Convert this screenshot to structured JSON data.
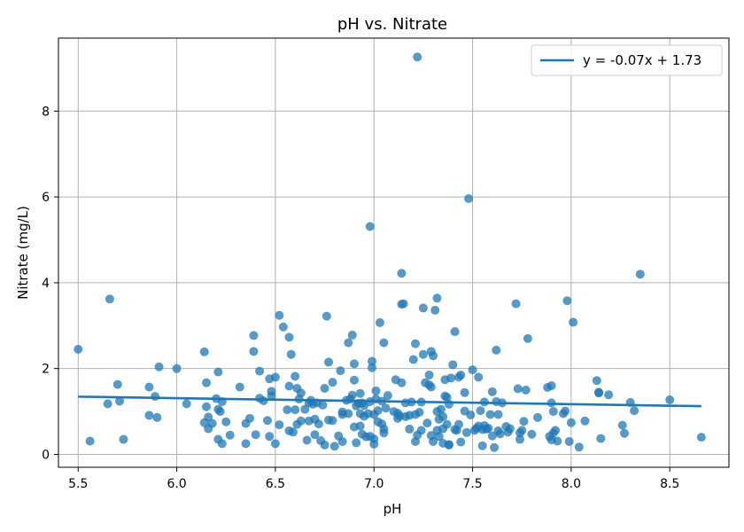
{
  "chart_data": {
    "type": "scatter",
    "title": "pH vs. Nitrate",
    "xlabel": "pH",
    "ylabel": "Nitrate (mg/L)",
    "xlim": [
      5.4,
      8.8
    ],
    "ylim": [
      -0.3,
      9.7
    ],
    "xticks": [
      5.5,
      6.0,
      6.5,
      7.0,
      7.5,
      8.0,
      8.5
    ],
    "xtick_labels": [
      "5.5",
      "6.0",
      "6.5",
      "7.0",
      "7.5",
      "8.0",
      "8.5"
    ],
    "yticks": [
      0,
      2,
      4,
      6,
      8
    ],
    "ytick_labels": [
      "0",
      "2",
      "4",
      "6",
      "8"
    ],
    "grid": true,
    "legend_position": "top-right",
    "point_color": "#1f77b4",
    "line_color": "#1f77b4",
    "trend_line": {
      "label": "y = -0.07x + 1.73",
      "slope": -0.07,
      "intercept": 1.73,
      "x_range": [
        5.5,
        8.66
      ]
    },
    "points": [
      [
        5.5,
        2.45
      ],
      [
        5.56,
        0.31
      ],
      [
        5.65,
        1.18
      ],
      [
        5.66,
        3.62
      ],
      [
        5.7,
        1.63
      ],
      [
        5.71,
        1.24
      ],
      [
        5.73,
        0.35
      ],
      [
        5.86,
        1.57
      ],
      [
        5.86,
        0.91
      ],
      [
        5.89,
        1.35
      ],
      [
        5.9,
        0.86
      ],
      [
        5.91,
        2.04
      ],
      [
        6.0,
        2.0
      ],
      [
        6.05,
        1.18
      ],
      [
        6.14,
        2.39
      ],
      [
        6.14,
        0.74
      ],
      [
        6.15,
        1.67
      ],
      [
        6.15,
        1.11
      ],
      [
        6.16,
        0.87
      ],
      [
        6.16,
        0.6
      ],
      [
        6.18,
        0.72
      ],
      [
        6.2,
        1.3
      ],
      [
        6.21,
        1.05
      ],
      [
        6.21,
        0.35
      ],
      [
        6.21,
        1.92
      ],
      [
        6.22,
        1.0
      ],
      [
        6.23,
        1.23
      ],
      [
        6.23,
        0.25
      ],
      [
        6.25,
        0.76
      ],
      [
        6.27,
        0.45
      ],
      [
        6.32,
        1.57
      ],
      [
        6.35,
        0.25
      ],
      [
        6.35,
        0.72
      ],
      [
        6.37,
        0.84
      ],
      [
        6.39,
        2.77
      ],
      [
        6.39,
        2.4
      ],
      [
        6.4,
        0.46
      ],
      [
        6.42,
        1.94
      ],
      [
        6.42,
        1.31
      ],
      [
        6.44,
        1.25
      ],
      [
        6.46,
        0.79
      ],
      [
        6.47,
        1.76
      ],
      [
        6.47,
        0.42
      ],
      [
        6.48,
        1.47
      ],
      [
        6.48,
        1.36
      ],
      [
        6.5,
        1.8
      ],
      [
        6.5,
        0.25
      ],
      [
        6.52,
        3.24
      ],
      [
        6.52,
        0.69
      ],
      [
        6.54,
        2.97
      ],
      [
        6.56,
        1.04
      ],
      [
        6.57,
        2.73
      ],
      [
        6.57,
        1.59
      ],
      [
        6.57,
        0.55
      ],
      [
        6.58,
        2.33
      ],
      [
        6.59,
        0.52
      ],
      [
        6.6,
        1.82
      ],
      [
        6.6,
        1.04
      ],
      [
        6.61,
        1.54
      ],
      [
        6.61,
        0.7
      ],
      [
        6.62,
        1.29
      ],
      [
        6.63,
        1.43
      ],
      [
        6.63,
        0.78
      ],
      [
        6.65,
        1.05
      ],
      [
        6.66,
        0.33
      ],
      [
        6.67,
        1.2
      ],
      [
        6.67,
        0.78
      ],
      [
        6.68,
        1.26
      ],
      [
        6.69,
        1.17
      ],
      [
        6.7,
        0.82
      ],
      [
        6.7,
        0.46
      ],
      [
        6.71,
        1.2
      ],
      [
        6.72,
        0.71
      ],
      [
        6.73,
        0.32
      ],
      [
        6.74,
        1.15
      ],
      [
        6.75,
        0.22
      ],
      [
        6.75,
        1.54
      ],
      [
        6.76,
        3.22
      ],
      [
        6.77,
        2.15
      ],
      [
        6.77,
        0.8
      ],
      [
        6.79,
        0.79
      ],
      [
        6.79,
        1.68
      ],
      [
        6.8,
        0.19
      ],
      [
        6.82,
        0.43
      ],
      [
        6.83,
        1.95
      ],
      [
        6.84,
        0.99
      ],
      [
        6.84,
        0.93
      ],
      [
        6.84,
        0.3
      ],
      [
        6.86,
        1.26
      ],
      [
        6.87,
        2.6
      ],
      [
        6.87,
        0.95
      ],
      [
        6.88,
        1.29
      ],
      [
        6.89,
        2.78
      ],
      [
        6.89,
        1.38
      ],
      [
        6.9,
        0.64
      ],
      [
        6.9,
        2.11
      ],
      [
        6.9,
        1.73
      ],
      [
        6.91,
        1.13
      ],
      [
        6.91,
        0.27
      ],
      [
        6.92,
        1.19
      ],
      [
        6.93,
        0.95
      ],
      [
        6.93,
        1.42
      ],
      [
        6.93,
        0.66
      ],
      [
        6.94,
        1.2
      ],
      [
        6.94,
        0.47
      ],
      [
        6.95,
        1.14
      ],
      [
        6.95,
        0.89
      ],
      [
        6.96,
        0.41
      ],
      [
        6.97,
        0.95
      ],
      [
        6.98,
        5.31
      ],
      [
        6.98,
        1.23
      ],
      [
        6.98,
        0.42
      ],
      [
        6.99,
        2.17
      ],
      [
        6.99,
        2.02
      ],
      [
        7.0,
        0.93
      ],
      [
        7.0,
        0.36
      ],
      [
        7.0,
        0.24
      ],
      [
        7.01,
        1.48
      ],
      [
        7.01,
        1.29
      ],
      [
        7.02,
        1.02
      ],
      [
        7.02,
        0.76
      ],
      [
        7.03,
        3.07
      ],
      [
        7.04,
        1.24
      ],
      [
        7.04,
        0.71
      ],
      [
        7.05,
        2.6
      ],
      [
        7.05,
        0.59
      ],
      [
        7.05,
        0.5
      ],
      [
        7.06,
        1.08
      ],
      [
        7.07,
        1.37
      ],
      [
        7.1,
        1.0
      ],
      [
        7.11,
        1.74
      ],
      [
        7.12,
        0.96
      ],
      [
        7.12,
        0.84
      ],
      [
        7.13,
        0.9
      ],
      [
        7.14,
        3.5
      ],
      [
        7.14,
        4.22
      ],
      [
        7.14,
        1.67
      ],
      [
        7.15,
        3.51
      ],
      [
        7.16,
        0.88
      ],
      [
        7.16,
        1.2
      ],
      [
        7.18,
        0.59
      ],
      [
        7.18,
        0.91
      ],
      [
        7.19,
        1.22
      ],
      [
        7.2,
        2.21
      ],
      [
        7.21,
        0.93
      ],
      [
        7.21,
        2.58
      ],
      [
        7.21,
        0.3
      ],
      [
        7.22,
        9.26
      ],
      [
        7.22,
        0.45
      ],
      [
        7.23,
        0.98
      ],
      [
        7.24,
        1.22
      ],
      [
        7.24,
        0.56
      ],
      [
        7.25,
        3.41
      ],
      [
        7.25,
        2.33
      ],
      [
        7.26,
        1.67
      ],
      [
        7.27,
        0.73
      ],
      [
        7.28,
        1.62
      ],
      [
        7.28,
        1.85
      ],
      [
        7.29,
        2.4
      ],
      [
        7.29,
        1.57
      ],
      [
        7.29,
        0.44
      ],
      [
        7.3,
        2.3
      ],
      [
        7.3,
        0.3
      ],
      [
        7.31,
        3.36
      ],
      [
        7.32,
        3.64
      ],
      [
        7.32,
        1.0
      ],
      [
        7.32,
        0.56
      ],
      [
        7.33,
        0.82
      ],
      [
        7.33,
        0.42
      ],
      [
        7.34,
        1.05
      ],
      [
        7.35,
        0.88
      ],
      [
        7.35,
        0.6
      ],
      [
        7.35,
        0.26
      ],
      [
        7.36,
        1.74
      ],
      [
        7.36,
        1.36
      ],
      [
        7.37,
        1.33
      ],
      [
        7.37,
        0.7
      ],
      [
        7.38,
        0.22
      ],
      [
        7.38,
        1.17
      ],
      [
        7.38,
        0.23
      ],
      [
        7.39,
        1.78
      ],
      [
        7.4,
        2.09
      ],
      [
        7.41,
        2.86
      ],
      [
        7.41,
        0.58
      ],
      [
        7.42,
        0.56
      ],
      [
        7.43,
        1.8
      ],
      [
        7.43,
        0.7
      ],
      [
        7.44,
        1.85
      ],
      [
        7.44,
        0.29
      ],
      [
        7.46,
        1.44
      ],
      [
        7.46,
        1.01
      ],
      [
        7.47,
        0.51
      ],
      [
        7.48,
        5.96
      ],
      [
        7.49,
        0.92
      ],
      [
        7.5,
        1.97
      ],
      [
        7.51,
        0.56
      ],
      [
        7.52,
        0.61
      ],
      [
        7.53,
        1.8
      ],
      [
        7.53,
        0.66
      ],
      [
        7.54,
        1.02
      ],
      [
        7.55,
        0.58
      ],
      [
        7.55,
        0.2
      ],
      [
        7.56,
        1.22
      ],
      [
        7.56,
        0.67
      ],
      [
        7.57,
        0.59
      ],
      [
        7.58,
        0.61
      ],
      [
        7.59,
        0.93
      ],
      [
        7.6,
        1.46
      ],
      [
        7.6,
        0.43
      ],
      [
        7.61,
        0.16
      ],
      [
        7.62,
        2.43
      ],
      [
        7.62,
        1.23
      ],
      [
        7.63,
        0.55
      ],
      [
        7.63,
        0.93
      ],
      [
        7.64,
        0.48
      ],
      [
        7.65,
        1.2
      ],
      [
        7.67,
        0.65
      ],
      [
        7.68,
        0.52
      ],
      [
        7.69,
        0.6
      ],
      [
        7.72,
        3.51
      ],
      [
        7.73,
        1.53
      ],
      [
        7.74,
        0.5
      ],
      [
        7.74,
        0.35
      ],
      [
        7.75,
        0.56
      ],
      [
        7.76,
        0.77
      ],
      [
        7.77,
        1.5
      ],
      [
        7.78,
        2.7
      ],
      [
        7.8,
        0.47
      ],
      [
        7.83,
        0.86
      ],
      [
        7.88,
        1.56
      ],
      [
        7.89,
        0.42
      ],
      [
        7.9,
        1.6
      ],
      [
        7.9,
        1.2
      ],
      [
        7.9,
        0.34
      ],
      [
        7.91,
        1.0
      ],
      [
        7.91,
        0.5
      ],
      [
        7.92,
        0.56
      ],
      [
        7.93,
        0.31
      ],
      [
        7.96,
        0.95
      ],
      [
        7.97,
        1.01
      ],
      [
        7.98,
        3.58
      ],
      [
        7.99,
        0.3
      ],
      [
        8.0,
        0.74
      ],
      [
        8.01,
        3.08
      ],
      [
        8.04,
        0.17
      ],
      [
        8.07,
        0.78
      ],
      [
        8.13,
        1.72
      ],
      [
        8.14,
        1.45
      ],
      [
        8.14,
        1.43
      ],
      [
        8.15,
        0.37
      ],
      [
        8.19,
        1.39
      ],
      [
        8.26,
        0.68
      ],
      [
        8.27,
        0.49
      ],
      [
        8.3,
        1.21
      ],
      [
        8.32,
        1.02
      ],
      [
        8.35,
        4.2
      ],
      [
        8.5,
        1.27
      ],
      [
        8.66,
        0.4
      ]
    ]
  }
}
